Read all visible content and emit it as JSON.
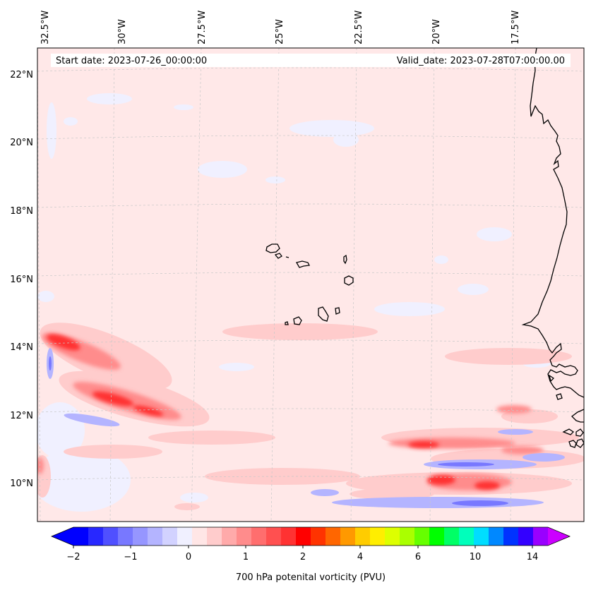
{
  "map": {
    "start_date_text": "Start date: 2023-07-26_00:00:00",
    "valid_date_text": "Valid_date: 2023-07-28T07:00:00.00",
    "lon_labels": [
      "32.5°W",
      "30°W",
      "27.5°W",
      "25°W",
      "22.5°W",
      "20°W",
      "17.5°W"
    ],
    "lat_labels": [
      "22°N",
      "20°N",
      "18°N",
      "16°N",
      "14°N",
      "12°N",
      "10°N"
    ],
    "background_color": "#ffe8e8",
    "coastline_color": "#000000",
    "gridline_color": "#c8c8c8"
  },
  "colorbar": {
    "label": "700 hPa potenital vorticity (PVU)",
    "tick_labels": [
      "−2",
      "−1",
      "0",
      "1",
      "2",
      "4",
      "6",
      "10",
      "14"
    ],
    "colors": [
      "#0000ff",
      "#2828ff",
      "#5050ff",
      "#7878ff",
      "#9696ff",
      "#b4b4ff",
      "#d2d2ff",
      "#f0f0ff",
      "#ffe6e6",
      "#ffcccc",
      "#ffaaaa",
      "#ff8c8c",
      "#ff6e6e",
      "#ff5050",
      "#ff3232",
      "#ff0000",
      "#ff3300",
      "#ff6600",
      "#ff9900",
      "#ffcc00",
      "#ffee00",
      "#ddff00",
      "#aaff00",
      "#66ff00",
      "#00ff00",
      "#00ff66",
      "#00ffbb",
      "#00ddff",
      "#0088ff",
      "#0033ff",
      "#3300ff",
      "#9900ff"
    ],
    "under_color": "#0000ff",
    "over_color": "#cc00ff"
  }
}
